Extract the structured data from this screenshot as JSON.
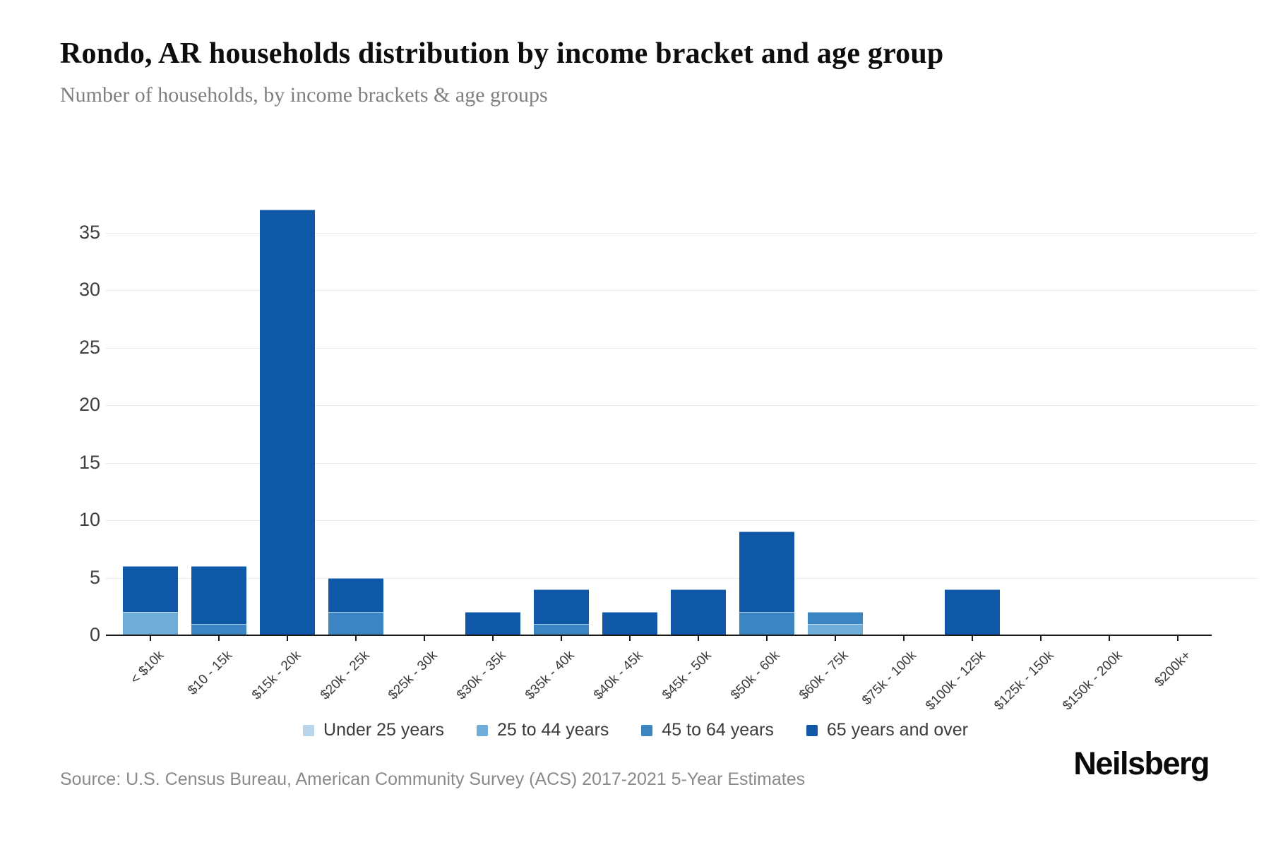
{
  "header": {
    "title": "Rondo, AR households distribution by income bracket and age group",
    "subtitle": "Number of households, by income brackets & age groups"
  },
  "chart_data": {
    "type": "bar",
    "stacked": true,
    "title": "Rondo, AR households distribution by income bracket and age group",
    "xlabel": "",
    "ylabel": "Number of households",
    "categories": [
      "< $10k",
      "$10 - 15k",
      "$15k - 20k",
      "$20k - 25k",
      "$25k - 30k",
      "$30k - 35k",
      "$35k - 40k",
      "$40k - 45k",
      "$45k - 50k",
      "$50k - 60k",
      "$60k - 75k",
      "$75k - 100k",
      "$100k - 125k",
      "$125k - 150k",
      "$150k - 200k",
      "$200k+"
    ],
    "series": [
      {
        "name": "Under 25 years",
        "color": "#b9d5e9",
        "values": [
          0,
          0,
          0,
          0,
          0,
          0,
          0,
          0,
          0,
          0,
          0,
          0,
          0,
          0,
          0,
          0
        ]
      },
      {
        "name": "25 to 44 years",
        "color": "#6fadd8",
        "values": [
          2,
          0,
          0,
          0,
          0,
          0,
          0,
          0,
          0,
          0,
          1,
          0,
          0,
          0,
          0,
          0
        ]
      },
      {
        "name": "45 to 64 years",
        "color": "#3a85c2",
        "values": [
          0,
          1,
          0,
          2,
          0,
          0,
          1,
          0,
          0,
          2,
          1,
          0,
          0,
          0,
          0,
          0
        ]
      },
      {
        "name": "65 years and over",
        "color": "#0f58a8",
        "values": [
          4,
          5,
          37,
          3,
          0,
          2,
          3,
          2,
          4,
          7,
          0,
          0,
          4,
          0,
          0,
          0
        ]
      }
    ],
    "totals": [
      6,
      6,
      37,
      5,
      0,
      2,
      4,
      2,
      4,
      9,
      2,
      0,
      4,
      0,
      0,
      0
    ],
    "ylim": [
      0,
      37
    ],
    "yticks": [
      0,
      5,
      10,
      15,
      20,
      25,
      30,
      35
    ],
    "grid": true,
    "legend_position": "bottom"
  },
  "colors": {
    "axis": "#1a1a1a",
    "gridline": "#ebebeb",
    "tick_text": "#3f3f3f"
  },
  "footer": {
    "source": "Source: U.S. Census Bureau, American Community Survey (ACS) 2017-2021 5-Year Estimates",
    "logo": "Neilsberg"
  }
}
